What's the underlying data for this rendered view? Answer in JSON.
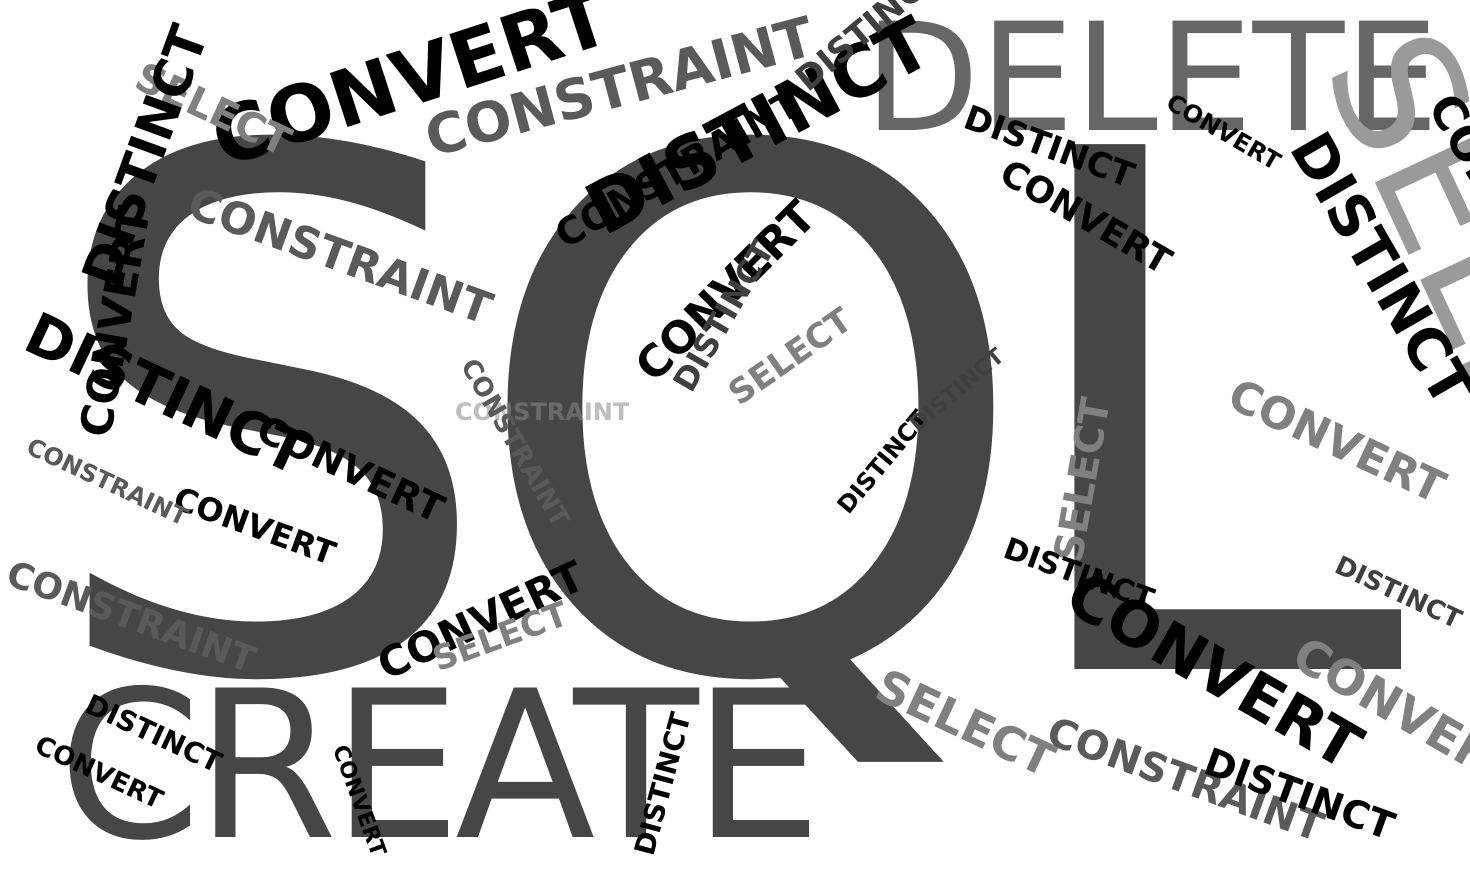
{
  "main_words": {
    "sql": "SQL",
    "create": "CREATE",
    "delete": "DELETE",
    "select": "SELECT"
  },
  "scatter_words": [
    {
      "text": "CONVERT",
      "color": "c0"
    },
    {
      "text": "DISTINCT",
      "color": "c0"
    },
    {
      "text": "CONSTRAINT",
      "color": "c2"
    },
    {
      "text": "SELECT",
      "color": "c3"
    },
    {
      "text": "DISTINCT",
      "color": "c1"
    },
    {
      "text": "CONVERT",
      "color": "c3"
    },
    {
      "text": "CONSTRAINT",
      "color": "c0"
    },
    {
      "text": "SELECT",
      "color": "c0"
    },
    {
      "text": "DISTINCT",
      "color": "c4"
    },
    {
      "text": "CONVERT",
      "color": "c2"
    },
    {
      "text": "CONSTRAINT",
      "color": "c4"
    },
    {
      "text": "SELECT",
      "color": "c2"
    }
  ],
  "watermark": "CONSTRAINT"
}
